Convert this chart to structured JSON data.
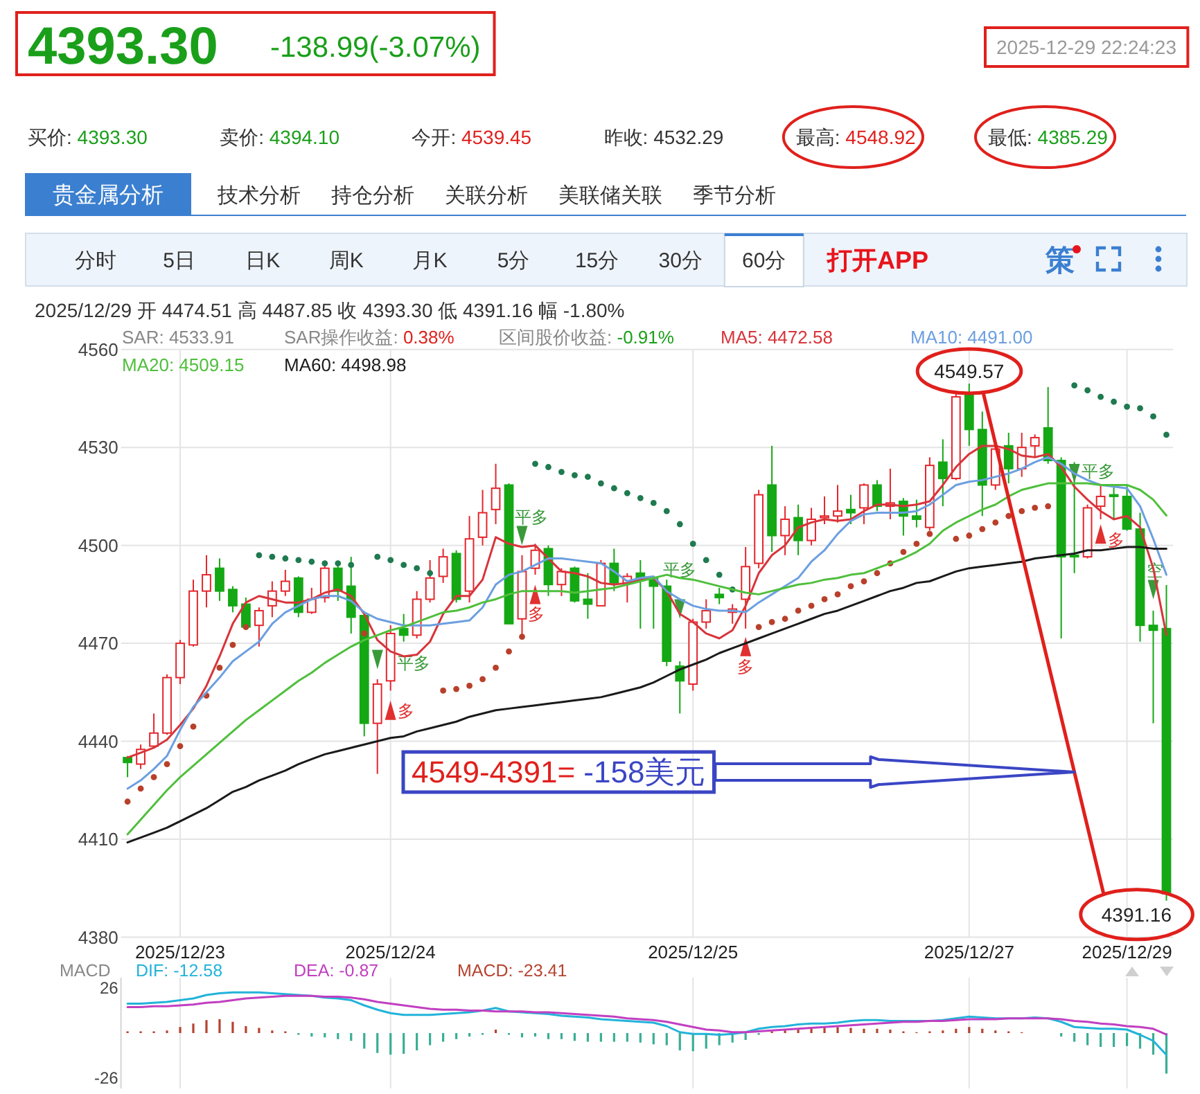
{
  "chart_data": [
    {
      "type": "other",
      "title": "4393.30",
      "subtitle": "-138.99(-3.07%)",
      "annotations": [
        "2025-12-29 22:24:23"
      ]
    },
    {
      "type": "other",
      "annotations": [
        "买价: 4393.30",
        "卖价: 4394.10",
        "今开: 4539.45",
        "昨收: 4532.29",
        "最高: 4548.92",
        "最低: 4385.29"
      ]
    },
    {
      "type": "other",
      "annotations": [
        "贵金属分析",
        "技术分析",
        "持仓分析",
        "关联分析",
        "美联储关联",
        "季节分析"
      ]
    },
    {
      "type": "other",
      "annotations": [
        "分时",
        "5日",
        "日K",
        "周K",
        "月K",
        "5分",
        "15分",
        "30分",
        "60分",
        "打开APP",
        "策"
      ]
    },
    {
      "type": "candlestick",
      "title": "2025/12/29 开 4474.51 高 4487.85 收 4393.30 低 4391.16 幅 -1.80%",
      "categories": [
        null,
        null,
        null,
        null,
        "2025/12/23",
        null,
        null,
        null,
        null,
        null,
        null,
        null,
        null,
        null,
        null,
        null,
        null,
        null,
        null,
        null,
        "2025/12/24",
        null,
        null,
        null,
        null,
        null,
        null,
        null,
        null,
        null,
        null,
        null,
        null,
        null,
        null,
        null,
        null,
        null,
        null,
        null,
        null,
        null,
        null,
        "2025/12/25",
        null,
        null,
        null,
        null,
        null,
        null,
        null,
        null,
        null,
        null,
        null,
        null,
        null,
        null,
        null,
        null,
        null,
        null,
        null,
        null,
        "2025/12/27",
        null,
        null,
        null,
        null,
        null,
        null,
        null,
        null,
        null,
        null,
        null,
        "2025/12/29",
        null,
        null,
        null
      ],
      "ylim": [
        4380,
        4560
      ],
      "yticks": [
        4380,
        4410,
        4440,
        4470,
        4500,
        4530,
        4560
      ],
      "grid": true,
      "legend": "top",
      "ohlc": [
        [
          4435,
          4435.5,
          4429,
          4433.5
        ],
        [
          4433,
          4439,
          4431.5,
          4437.5
        ],
        [
          4438.5,
          4448.5,
          4438,
          4442.5
        ],
        [
          4442.5,
          4460.5,
          4442,
          4459.5
        ],
        [
          4459.5,
          4471,
          4457.5,
          4470
        ],
        [
          4469.5,
          4489.5,
          4469,
          4486
        ],
        [
          4486,
          4497,
          4481,
          4491
        ],
        [
          4493,
          4496,
          4483,
          4486
        ],
        [
          4486.5,
          4487.5,
          4479.5,
          4481.5
        ],
        [
          4482,
          4484,
          4474.5,
          4475
        ],
        [
          4475.5,
          4481,
          4469,
          4480
        ],
        [
          4481.5,
          4489,
          4478,
          4486
        ],
        [
          4486,
          4492.5,
          4484.5,
          4489
        ],
        [
          4490,
          4490.5,
          4478,
          4479.5
        ],
        [
          4479.5,
          4487,
          4479,
          4483.5
        ],
        [
          4484,
          4495,
          4482.5,
          4493
        ],
        [
          4493,
          4495,
          4483,
          4486
        ],
        [
          4487.5,
          4496.5,
          4473,
          4478
        ],
        [
          4478.5,
          4479,
          4441.5,
          4445.5
        ],
        [
          4445.5,
          4459,
          4430,
          4457.5
        ],
        [
          4458.5,
          4475.5,
          4455.5,
          4473
        ],
        [
          4474.5,
          4479,
          4470.5,
          4472.5
        ],
        [
          4472.5,
          4486,
          4471.5,
          4483.5
        ],
        [
          4483.5,
          4495.5,
          4482.5,
          4490
        ],
        [
          4490.5,
          4499,
          4488.5,
          4496.5
        ],
        [
          4497.5,
          4498.5,
          4482.5,
          4483.5
        ],
        [
          4486,
          4509,
          4482.5,
          4502
        ],
        [
          4502.5,
          4517,
          4500,
          4510
        ],
        [
          4511,
          4525,
          4506.5,
          4517.5
        ],
        [
          4518.5,
          4519,
          4476,
          4476
        ],
        [
          4477.5,
          4497,
          4472.5,
          4492
        ],
        [
          4493,
          4500.5,
          4491,
          4498.5
        ],
        [
          4499,
          4500,
          4484.5,
          4488
        ],
        [
          4488,
          4493,
          4484.5,
          4492
        ],
        [
          4493,
          4493.5,
          4482.5,
          4483
        ],
        [
          4483.5,
          4491.5,
          4477.5,
          4482
        ],
        [
          4481.5,
          4495.5,
          4481.5,
          4494.5
        ],
        [
          4494.5,
          4499,
          4486,
          4488.5
        ],
        [
          4488.5,
          4491.5,
          4482.5,
          4490.5
        ],
        [
          4491.5,
          4495.5,
          4474.5,
          4490
        ],
        [
          4490,
          4490.5,
          4474.5,
          4487.5
        ],
        [
          4487.5,
          4489.5,
          4463,
          4464.5
        ],
        [
          4463,
          4464.5,
          4448.5,
          4458.5
        ],
        [
          4457.5,
          4477.5,
          4455.5,
          4476.5
        ],
        [
          4476.5,
          4483.5,
          4474.5,
          4480
        ],
        [
          4485,
          4487,
          4482,
          4484
        ],
        [
          4479.5,
          4482,
          4476,
          4480.5
        ],
        [
          4483.5,
          4499.5,
          4474.5,
          4493.5
        ],
        [
          4494.5,
          4517,
          4493,
          4515.5
        ],
        [
          4518.5,
          4530.5,
          4498,
          4503
        ],
        [
          4503,
          4512,
          4497,
          4508
        ],
        [
          4508.5,
          4512.5,
          4497,
          4501.5
        ],
        [
          4501.5,
          4511.5,
          4500,
          4508
        ],
        [
          4508.5,
          4515,
          4506.5,
          4509
        ],
        [
          4509,
          4518.5,
          4507,
          4510.5
        ],
        [
          4511,
          4515.5,
          4506.5,
          4510
        ],
        [
          4511.5,
          4519,
          4506.5,
          4518.5
        ],
        [
          4518.5,
          4520,
          4510.5,
          4512
        ],
        [
          4512,
          4523.5,
          4508,
          4513
        ],
        [
          4513.5,
          4514.5,
          4503,
          4509
        ],
        [
          4509,
          4514,
          4505.5,
          4508
        ],
        [
          4505.5,
          4527,
          4504.5,
          4524.5
        ],
        [
          4525.5,
          4532.5,
          4512,
          4520.5
        ],
        [
          4520.5,
          4546.5,
          4520,
          4545.5
        ],
        [
          4546,
          4549.57,
          4530.5,
          4535.5
        ],
        [
          4535.5,
          4541,
          4509,
          4518.5
        ],
        [
          4518.5,
          4531,
          4517,
          4529.5
        ],
        [
          4530.5,
          4534.5,
          4519,
          4523.5
        ],
        [
          4523.5,
          4534.5,
          4521,
          4530
        ],
        [
          4530.5,
          4534,
          4527,
          4533
        ],
        [
          4536,
          4548.5,
          4525,
          4526
        ],
        [
          4526,
          4527,
          4471.5,
          4496.5
        ],
        [
          4497,
          4525.5,
          4491.5,
          4496.5
        ],
        [
          4496.5,
          4512.5,
          4496,
          4511.5
        ],
        [
          4512,
          4518.5,
          4508,
          4515
        ],
        [
          4515.5,
          4518.5,
          4508,
          4515
        ],
        [
          4515,
          4518.5,
          4504.5,
          4505
        ],
        [
          4505,
          4510,
          4470.5,
          4475.5
        ],
        [
          4475.5,
          4480,
          4445.5,
          4474
        ],
        [
          4474.51,
          4487.85,
          4391.16,
          4393.3
        ]
      ],
      "colors": [
        "#15a815",
        "#e4262c",
        "#e4262c",
        "#e4262c",
        "#e4262c",
        "#e4262c",
        "#e4262c",
        "#15a815",
        "#15a815",
        "#15a815",
        "#e4262c",
        "#e4262c",
        "#e4262c",
        "#15a815",
        "#e4262c",
        "#e4262c",
        "#15a815",
        "#15a815",
        "#15a815",
        "#e4262c",
        "#e4262c",
        "#15a815",
        "#e4262c",
        "#e4262c",
        "#e4262c",
        "#15a815",
        "#e4262c",
        "#e4262c",
        "#e4262c",
        "#15a815",
        "#e4262c",
        "#e4262c",
        "#15a815",
        "#e4262c",
        "#15a815",
        "#15a815",
        "#e4262c",
        "#15a815",
        "#e4262c",
        "#15a815",
        "#15a815",
        "#15a815",
        "#15a815",
        "#e4262c",
        "#e4262c",
        "#15a815",
        "#e4262c",
        "#e4262c",
        "#e4262c",
        "#15a815",
        "#e4262c",
        "#15a815",
        "#e4262c",
        "#e4262c",
        "#e4262c",
        "#15a815",
        "#e4262c",
        "#15a815",
        "#e4262c",
        "#15a815",
        "#15a815",
        "#e4262c",
        "#15a815",
        "#e4262c",
        "#15a815",
        "#15a815",
        "#e4262c",
        "#15a815",
        "#e4262c",
        "#e4262c",
        "#15a815",
        "#15a815",
        "#15a815",
        "#e4262c",
        "#e4262c",
        "#15a815",
        "#15a815",
        "#15a815",
        "#15a815",
        "#15a815"
      ],
      "value_labels": [
        null,
        null,
        null,
        null,
        null,
        null,
        null,
        null,
        null,
        null,
        null,
        null,
        null,
        null,
        null,
        null,
        null,
        null,
        null,
        null,
        null,
        null,
        null,
        null,
        null,
        null,
        null,
        null,
        null,
        null,
        null,
        null,
        null,
        null,
        null,
        null,
        null,
        null,
        null,
        null,
        null,
        null,
        null,
        null,
        null,
        null,
        null,
        null,
        null,
        null,
        null,
        null,
        null,
        null,
        null,
        null,
        null,
        null,
        null,
        null,
        null,
        null,
        null,
        null,
        "4549.57",
        null,
        null,
        null,
        null,
        null,
        null,
        null,
        null,
        null,
        null,
        null,
        null,
        null,
        null,
        "4391.16"
      ],
      "series": [
        {
          "type": "line",
          "name": "MA5: 4472.58",
          "color": "#d8343a",
          "values": [
            4435,
            4436.5,
            4438,
            4440.5,
            4445,
            4450,
            4457,
            4466,
            4476,
            4482.5,
            4484.5,
            4483.5,
            4482.5,
            4482.5,
            4483.5,
            4485.5,
            4486.5,
            4484.5,
            4479,
            4471,
            4467.5,
            4466,
            4466.5,
            4470.5,
            4479,
            4484.5,
            4484.5,
            4489.5,
            4502.5,
            4500.5,
            4499.5,
            4500,
            4496,
            4492,
            4491.5,
            4490.5,
            4488.5,
            4488,
            4488.5,
            4489.5,
            4490,
            4486,
            4479,
            4476.5,
            4473,
            4471.5,
            4474,
            4481.5,
            4491.5,
            4497,
            4500,
            4505.5,
            4507,
            4508,
            4507.5,
            4508,
            4510.5,
            4512.5,
            4512.5,
            4512,
            4512.5,
            4513.5,
            4518.5,
            4524,
            4528,
            4530.5,
            4530.5,
            4529.5,
            4527.5,
            4527,
            4528,
            4524,
            4518,
            4514,
            4510.5,
            4508,
            4509,
            4505.5,
            4493,
            4472.58
          ]
        },
        {
          "type": "line",
          "name": "MA10: 4491.00",
          "color": "#6c9fe0",
          "values": [
            4425.5,
            4428,
            4431.5,
            4435.5,
            4443.5,
            4450.5,
            4455,
            4459.5,
            4464.5,
            4467.5,
            4470.5,
            4476,
            4479.5,
            4481.5,
            4483.5,
            4484.5,
            4484.5,
            4483,
            4479.5,
            4477.5,
            4476.5,
            4475.5,
            4475.5,
            4475.5,
            4476,
            4476.5,
            4477,
            4481,
            4488,
            4491,
            4492,
            4494,
            4496,
            4496,
            4495.5,
            4495,
            4494.5,
            4492,
            4489,
            4490,
            4490.5,
            4486,
            4483.5,
            4481.5,
            4480.5,
            4480,
            4480,
            4479.5,
            4482.5,
            4485,
            4487.5,
            4490,
            4495,
            4498.5,
            4503.5,
            4507.5,
            4509.5,
            4510,
            4510,
            4510,
            4510.5,
            4512.5,
            4515.5,
            4518.5,
            4519.5,
            4520,
            4521,
            4522,
            4523.5,
            4525.5,
            4527,
            4525,
            4522,
            4520,
            4518.5,
            4518,
            4517.5,
            4512,
            4502,
            4491
          ]
        },
        {
          "type": "line",
          "name": "MA20: 4509.15",
          "color": "#4fbf3c",
          "values": [
            4411.5,
            4416,
            4420.5,
            4425,
            4429,
            4432.5,
            4436,
            4439.5,
            4443,
            4446.5,
            4449.5,
            4452.5,
            4455.5,
            4458.5,
            4461,
            4464,
            4466.5,
            4469,
            4471,
            4472.5,
            4474,
            4475,
            4476.5,
            4478,
            4479.5,
            4480,
            4481,
            4482.5,
            4483.5,
            4485,
            4486,
            4486,
            4486,
            4486,
            4485.5,
            4486,
            4486.5,
            4487,
            4488,
            4489,
            4490,
            4491,
            4490,
            4489.5,
            4488.5,
            4487.5,
            4486.5,
            4485.5,
            4485,
            4486,
            4487,
            4488,
            4488.5,
            4489.5,
            4490,
            4491,
            4491.5,
            4493,
            4494.5,
            4496,
            4498,
            4500.5,
            4504.5,
            4507,
            4509,
            4511,
            4512.5,
            4515,
            4517,
            4518,
            4519,
            4519,
            4519,
            4519,
            4518.5,
            4518.5,
            4518.5,
            4517,
            4514,
            4509.15
          ]
        },
        {
          "type": "line",
          "name": "MA60: 4498.98",
          "color": "#1a1a1a",
          "values": [
            4409,
            4410.5,
            4412,
            4413.5,
            4415.5,
            4417.5,
            4419.5,
            4422,
            4424.5,
            4426,
            4428,
            4429.5,
            4431,
            4433,
            4434.5,
            4436,
            4437,
            4438,
            4439,
            4440,
            4441,
            4441.5,
            4443,
            4444,
            4445,
            4446,
            4447.5,
            4448.5,
            4449.5,
            4450,
            4450.5,
            4451,
            4451.5,
            4452,
            4452.5,
            4453,
            4453.5,
            4454.5,
            4455.5,
            4456.5,
            4458,
            4460,
            4462,
            4463.5,
            4465,
            4467,
            4468.5,
            4470,
            4471.5,
            4473,
            4474.5,
            4476,
            4477.5,
            4479,
            4480,
            4481.5,
            4483,
            4484.5,
            4486,
            4487,
            4488.5,
            4489,
            4490.5,
            4492,
            4493,
            4493.5,
            4494,
            4494.5,
            4495,
            4496,
            4496.5,
            4497,
            4497.5,
            4498.5,
            4498.5,
            4499,
            4499.5,
            4499.5,
            4499,
            4498.98
          ]
        },
        {
          "type": "scatter",
          "marker": "circle",
          "values": [
            4421.5,
            4425.5,
            4429,
            4433,
            4438.5,
            4444.5,
            4454,
            4462.5,
            4469.5,
            4475,
            4497,
            4496.5,
            4496,
            4495.5,
            4495,
            4494.5,
            4494.5,
            4494,
            4473,
            4496.5,
            4495.5,
            4494,
            4493,
            4491.5,
            4455.5,
            4456,
            4457,
            4459,
            4462.5,
            4467.5,
            4472,
            4525,
            4524,
            4522.5,
            4521.5,
            4521,
            4519,
            4517.5,
            4516,
            4514.5,
            4513,
            4510.5,
            4506.5,
            4500.5,
            4495.5,
            4491,
            4486.5,
            null,
            4475,
            4476.5,
            4477.5,
            4480,
            4481.5,
            4483.5,
            4485,
            4487.5,
            4489,
            4491.5,
            4494.5,
            4498,
            4500.5,
            4503.5,
            null,
            4502,
            4503,
            4505,
            4507,
            4509,
            4510.5,
            4511.5,
            4512,
            null,
            4549,
            4547.5,
            4545.5,
            4544,
            4542.5,
            4542,
            4539.5,
            4533.91
          ],
          "colors": [
            "#b8402a",
            "#b8402a",
            "#b8402a",
            "#b8402a",
            "#b8402a",
            "#b8402a",
            "#b8402a",
            "#b8402a",
            "#b8402a",
            "#b8402a",
            "#1f7a4f",
            "#1f7a4f",
            "#1f7a4f",
            "#1f7a4f",
            "#1f7a4f",
            "#1f7a4f",
            "#1f7a4f",
            "#1f7a4f",
            "#b8402a",
            "#1f7a4f",
            "#1f7a4f",
            "#1f7a4f",
            "#1f7a4f",
            "#1f7a4f",
            "#b8402a",
            "#b8402a",
            "#b8402a",
            "#b8402a",
            "#b8402a",
            "#b8402a",
            "#b8402a",
            "#1f7a4f",
            "#1f7a4f",
            "#1f7a4f",
            "#1f7a4f",
            "#1f7a4f",
            "#1f7a4f",
            "#1f7a4f",
            "#1f7a4f",
            "#1f7a4f",
            "#1f7a4f",
            "#1f7a4f",
            "#1f7a4f",
            "#1f7a4f",
            "#1f7a4f",
            "#1f7a4f",
            "#1f7a4f",
            null,
            "#b8402a",
            "#b8402a",
            "#b8402a",
            "#b8402a",
            "#b8402a",
            "#b8402a",
            "#b8402a",
            "#b8402a",
            "#b8402a",
            "#b8402a",
            "#b8402a",
            "#b8402a",
            "#b8402a",
            "#b8402a",
            null,
            "#b8402a",
            "#b8402a",
            "#b8402a",
            "#b8402a",
            "#b8402a",
            "#b8402a",
            "#b8402a",
            "#b8402a",
            null,
            "#1f7a4f",
            "#1f7a4f",
            "#1f7a4f",
            "#1f7a4f",
            "#1f7a4f",
            "#1f7a4f",
            "#1f7a4f",
            "#1f7a4f"
          ]
        },
        {
          "type": "scatter",
          "marker": "triangle",
          "color": "#3a9a3a",
          "values": [
            null,
            null,
            null,
            null,
            null,
            null,
            null,
            null,
            null,
            null,
            null,
            null,
            null,
            null,
            null,
            null,
            null,
            null,
            null,
            4465,
            null,
            null,
            null,
            null,
            null,
            null,
            null,
            null,
            null,
            null,
            4503,
            null,
            null,
            null,
            null,
            null,
            null,
            null,
            null,
            null,
            null,
            null,
            4480.5,
            null,
            null,
            null,
            null,
            null,
            null,
            null,
            null,
            null,
            null,
            null,
            null,
            null,
            null,
            null,
            null,
            null,
            null,
            null,
            null,
            null,
            null,
            null,
            null,
            null,
            null,
            null,
            null,
            null,
            4522,
            null,
            null,
            null,
            null,
            null,
            4486.5,
            null
          ],
          "value_labels": [
            null,
            null,
            null,
            null,
            null,
            null,
            null,
            null,
            null,
            null,
            null,
            null,
            null,
            null,
            null,
            null,
            null,
            null,
            null,
            "平多",
            null,
            null,
            null,
            null,
            null,
            null,
            null,
            null,
            null,
            null,
            "平多",
            null,
            null,
            null,
            null,
            null,
            null,
            null,
            null,
            null,
            null,
            null,
            "平多",
            null,
            null,
            null,
            null,
            null,
            null,
            null,
            null,
            null,
            null,
            null,
            null,
            null,
            null,
            null,
            null,
            null,
            null,
            null,
            null,
            null,
            null,
            null,
            null,
            null,
            null,
            null,
            null,
            null,
            "平多",
            null,
            null,
            null,
            null,
            null,
            "空",
            null
          ]
        },
        {
          "type": "scatter",
          "marker": "triangle",
          "color": "#e0302f",
          "values": [
            null,
            null,
            null,
            null,
            null,
            null,
            null,
            null,
            null,
            null,
            null,
            null,
            null,
            null,
            null,
            null,
            null,
            null,
            null,
            null,
            4449.5,
            null,
            null,
            null,
            null,
            null,
            null,
            null,
            null,
            null,
            null,
            4485,
            null,
            null,
            null,
            null,
            null,
            null,
            null,
            null,
            null,
            null,
            null,
            null,
            null,
            null,
            null,
            4469,
            null,
            null,
            null,
            null,
            null,
            null,
            null,
            null,
            null,
            null,
            null,
            null,
            null,
            null,
            null,
            null,
            null,
            null,
            null,
            null,
            null,
            null,
            null,
            null,
            null,
            null,
            4503.5,
            null,
            null,
            null,
            null,
            null
          ],
          "value_labels": [
            null,
            null,
            null,
            null,
            null,
            null,
            null,
            null,
            null,
            null,
            null,
            null,
            null,
            null,
            null,
            null,
            null,
            null,
            null,
            null,
            "多",
            null,
            null,
            null,
            null,
            null,
            null,
            null,
            null,
            null,
            null,
            "多",
            null,
            null,
            null,
            null,
            null,
            null,
            null,
            null,
            null,
            null,
            null,
            null,
            null,
            null,
            null,
            "多",
            null,
            null,
            null,
            null,
            null,
            null,
            null,
            null,
            null,
            null,
            null,
            null,
            null,
            null,
            null,
            null,
            null,
            null,
            null,
            null,
            null,
            null,
            null,
            null,
            null,
            null,
            "多",
            null,
            null,
            null,
            null,
            null
          ]
        }
      ],
      "annotations": [
        "SAR: 4533.91",
        "SAR操作收益: 0.38%",
        "区间股价收益: -0.91%",
        "4549-4391= -158美元"
      ]
    },
    {
      "type": "line",
      "title": "MACD",
      "categories": [
        null,
        null,
        null,
        null,
        "2025/12/23",
        null,
        null,
        null,
        null,
        null,
        null,
        null,
        null,
        null,
        null,
        null,
        null,
        null,
        null,
        null,
        "2025/12/24",
        null,
        null,
        null,
        null,
        null,
        null,
        null,
        null,
        null,
        null,
        null,
        null,
        null,
        null,
        null,
        null,
        null,
        null,
        null,
        null,
        null,
        null,
        "2025/12/25",
        null,
        null,
        null,
        null,
        null,
        null,
        null,
        null,
        null,
        null,
        null,
        null,
        null,
        null,
        null,
        null,
        null,
        null,
        null,
        null,
        "2025/12/27",
        null,
        null,
        null,
        null,
        null,
        null,
        null,
        null,
        null,
        null,
        null,
        "2025/12/29",
        null,
        null,
        null
      ],
      "ylim": [
        -32,
        32
      ],
      "yticks": [
        -26,
        26
      ],
      "grid": "x",
      "legend": "top",
      "tick_labels": "y",
      "series": [
        {
          "name": "DIF: -12.58",
          "color": "#22b3d9",
          "values": [
            17,
            17,
            17.5,
            18,
            19,
            20,
            22,
            23,
            23.5,
            23.5,
            23.5,
            23,
            22.5,
            22,
            21.5,
            20.5,
            20,
            19,
            16,
            13.5,
            11.5,
            10.5,
            10.5,
            10.5,
            11,
            11.5,
            12,
            13,
            14.5,
            12.5,
            12,
            11.5,
            11,
            10,
            9.5,
            9,
            8,
            7.5,
            7,
            6.5,
            6,
            4,
            0.5,
            -0.5,
            -0.5,
            -1,
            -0.5,
            0.5,
            2.5,
            3.5,
            4,
            5,
            5.5,
            5.5,
            6,
            7,
            7.5,
            7.5,
            7,
            7,
            7,
            7,
            7.5,
            8.5,
            9.5,
            9,
            8.5,
            8.5,
            8.5,
            9,
            8.5,
            6.5,
            3.5,
            3,
            2.5,
            2.5,
            2,
            -1,
            -4.5,
            -12.58
          ]
        },
        {
          "name": "DEA: -0.87",
          "color": "#c13fc1",
          "values": [
            15,
            15,
            15.5,
            15.5,
            16,
            16.5,
            17.5,
            18,
            19,
            20,
            20.5,
            21,
            21.5,
            21.5,
            21.5,
            21,
            21,
            20.5,
            19.5,
            18,
            17,
            16,
            15,
            14,
            13.5,
            13.5,
            13,
            13,
            12.5,
            12.5,
            12.5,
            12,
            12,
            11.5,
            11,
            10.5,
            10,
            9.5,
            8.5,
            8,
            7.5,
            6.5,
            5,
            3.5,
            2,
            1.5,
            0.5,
            0.5,
            1,
            1.5,
            2,
            2.5,
            3,
            3.5,
            4,
            4.5,
            5,
            5.5,
            6,
            6.5,
            6.5,
            7,
            7,
            7.5,
            8,
            8,
            8,
            8.5,
            8.5,
            8.5,
            8.5,
            8,
            7,
            6.5,
            5.5,
            5,
            4,
            3.5,
            2.5,
            -0.87
          ]
        },
        {
          "type": "bar",
          "name": "MACD: -23.41",
          "color": "#b5432f",
          "values": [
            1,
            1,
            1,
            1.5,
            3.5,
            5.5,
            7.5,
            8,
            6.5,
            4,
            3,
            1.5,
            1,
            -1,
            -2,
            -2.5,
            -3.5,
            -4.5,
            -9,
            -11.5,
            -12.5,
            -12,
            -10,
            -7,
            -5,
            -3.5,
            -2,
            -1,
            2,
            -1,
            -2.5,
            -2,
            -3.5,
            -3.5,
            -4.5,
            -5,
            -5,
            -5,
            -5,
            -5.5,
            -6.5,
            -7,
            -10,
            -10.5,
            -9,
            -7,
            -5.5,
            -4,
            -1,
            1,
            2,
            2,
            3,
            3.5,
            3.5,
            3,
            2.5,
            2.5,
            2,
            1,
            0.5,
            1,
            1.5,
            2.5,
            3.5,
            2.5,
            1.5,
            1,
            0.5,
            null,
            null,
            -2,
            -5,
            -7,
            -8,
            -8,
            -7.5,
            -9,
            -12.5,
            -23.41
          ],
          "colors": [
            "#b5432f",
            "#b5432f",
            "#b5432f",
            "#b5432f",
            "#b5432f",
            "#b5432f",
            "#b5432f",
            "#b5432f",
            "#b5432f",
            "#b5432f",
            "#b5432f",
            "#b5432f",
            "#b5432f",
            "#3aae95",
            "#3aae95",
            "#3aae95",
            "#3aae95",
            "#3aae95",
            "#3aae95",
            "#3aae95",
            "#3aae95",
            "#3aae95",
            "#3aae95",
            "#3aae95",
            "#3aae95",
            "#3aae95",
            "#3aae95",
            "#3aae95",
            "#b5432f",
            "#3aae95",
            "#3aae95",
            "#3aae95",
            "#3aae95",
            "#3aae95",
            "#3aae95",
            "#3aae95",
            "#3aae95",
            "#3aae95",
            "#3aae95",
            "#3aae95",
            "#3aae95",
            "#3aae95",
            "#3aae95",
            "#3aae95",
            "#3aae95",
            "#3aae95",
            "#3aae95",
            "#3aae95",
            "#3aae95",
            "#b5432f",
            "#b5432f",
            "#b5432f",
            "#b5432f",
            "#b5432f",
            "#b5432f",
            "#b5432f",
            "#b5432f",
            "#b5432f",
            "#b5432f",
            "#b5432f",
            "#b5432f",
            "#b5432f",
            "#b5432f",
            "#b5432f",
            "#b5432f",
            "#b5432f",
            "#b5432f",
            "#b5432f",
            "#b5432f",
            null,
            null,
            "#3aae95",
            "#3aae95",
            "#3aae95",
            "#3aae95",
            "#3aae95",
            "#3aae95",
            "#3aae95",
            "#3aae95",
            "#3aae95"
          ]
        }
      ]
    }
  ]
}
